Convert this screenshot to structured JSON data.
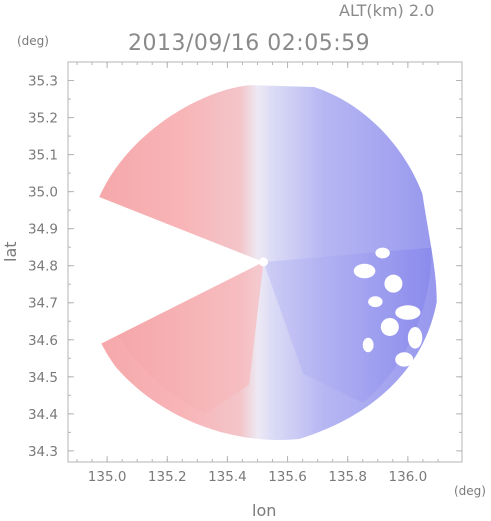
{
  "chart_data": {
    "type": "heatmap",
    "title": "2013/09/16 02:05:59",
    "subtitle": "ALT(km) 2.0",
    "xlabel": "lon",
    "ylabel": "lat",
    "x_unit": "(deg)",
    "y_unit": "(deg)",
    "xlim": [
      134.87,
      136.18
    ],
    "ylim": [
      34.27,
      35.35
    ],
    "x_ticks": [
      135.0,
      135.2,
      135.4,
      135.6,
      135.8,
      136.0
    ],
    "x_tick_labels": [
      "135.0",
      "135.2",
      "135.4",
      "135.6",
      "135.8",
      "136.0"
    ],
    "y_ticks": [
      34.3,
      34.4,
      34.5,
      34.6,
      34.7,
      34.8,
      34.9,
      35.0,
      35.1,
      35.2,
      35.3
    ],
    "y_tick_labels": [
      "34.3",
      "34.4",
      "34.5",
      "34.6",
      "34.7",
      "34.8",
      "34.9",
      "35.0",
      "35.1",
      "35.2",
      "35.3"
    ],
    "radar_center": [
      135.52,
      34.81
    ],
    "radar_radius_lon": 0.6,
    "colors": {
      "approaching": "#6f6ff0",
      "receding": "#f47e7e",
      "neutral": "#f4f0f8",
      "frame": "#b5b5b5",
      "text": "#7a7a7a"
    }
  }
}
